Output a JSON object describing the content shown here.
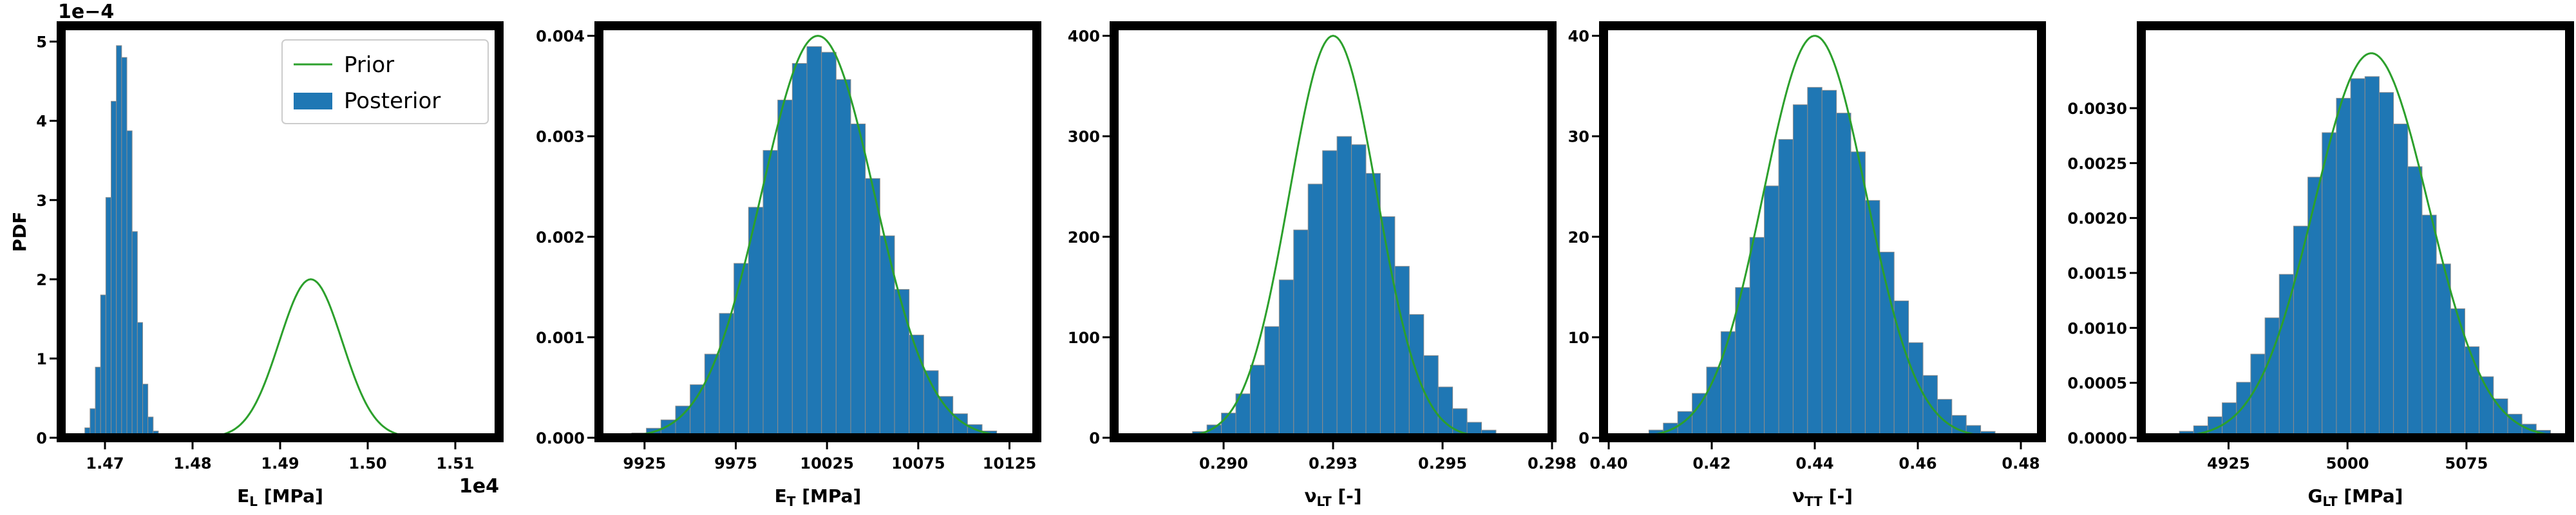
{
  "chart_data": [
    {
      "type": "histogram",
      "xlabel": "E_L [MPa]",
      "ylabel": "PDF",
      "x_offset_text": "1e4",
      "y_offset_text": "1e−4",
      "xlim": [
        1.465,
        1.515
      ],
      "ylim": [
        0,
        5.2
      ],
      "xticks": [
        1.47,
        1.48,
        1.49,
        1.5,
        1.51
      ],
      "xtick_labels": [
        "1.47",
        "1.48",
        "1.49",
        "1.50",
        "1.51"
      ],
      "yticks": [
        0,
        1,
        2,
        3,
        4,
        5
      ],
      "ytick_labels": [
        "0",
        "1",
        "2",
        "3",
        "4",
        "5"
      ],
      "legend": {
        "position": "top-right",
        "entries": [
          "Prior",
          "Posterior"
        ]
      },
      "prior": {
        "mean": 1.4935,
        "std": 0.0036,
        "peak": 2.0
      },
      "posterior": {
        "mean": 1.4718,
        "std": 0.0014,
        "peak": 5.0,
        "bin_start": 1.4665,
        "bin_width": 0.0006,
        "bins": 18
      }
    },
    {
      "type": "histogram",
      "xlabel": "E_T [MPa]",
      "xlim": [
        9900,
        10140
      ],
      "ylim": [
        0,
        0.0041
      ],
      "xticks": [
        9925,
        9975,
        10025,
        10075,
        10125
      ],
      "xtick_labels": [
        "9925",
        "9975",
        "10025",
        "10075",
        "10125"
      ],
      "yticks": [
        0,
        0.001,
        0.002,
        0.003,
        0.004
      ],
      "ytick_labels": [
        "0.000",
        "0.001",
        "0.002",
        "0.003",
        "0.004"
      ],
      "prior": {
        "mean": 10020,
        "std": 31,
        "peak": 0.004
      },
      "posterior": {
        "mean": 10020,
        "std": 33,
        "peak": 0.0039,
        "bin_start": 9910,
        "bin_width": 8,
        "bins": 28
      }
    },
    {
      "type": "histogram",
      "xlabel": "ν_LT [-]",
      "xlim": [
        0.2875,
        0.2975
      ],
      "ylim": [
        0,
        410
      ],
      "xticks": [
        0.29,
        0.2925,
        0.295,
        0.2975
      ],
      "xtick_labels": [
        "0.290",
        "0.293",
        "0.295",
        "0.298"
      ],
      "yticks": [
        0,
        100,
        200,
        300,
        400
      ],
      "ytick_labels": [
        "0",
        "100",
        "200",
        "300",
        "400"
      ],
      "prior": {
        "mean": 0.2925,
        "std": 0.001,
        "peak": 400
      },
      "posterior": {
        "mean": 0.2928,
        "std": 0.0012,
        "peak": 300,
        "bin_start": 0.2883,
        "bin_width": 0.00033,
        "bins": 27
      }
    },
    {
      "type": "histogram",
      "xlabel": "ν_TT [-]",
      "xlim": [
        0.399,
        0.484
      ],
      "ylim": [
        0,
        41
      ],
      "xticks": [
        0.4,
        0.42,
        0.44,
        0.46,
        0.48
      ],
      "xtick_labels": [
        "0.40",
        "0.42",
        "0.44",
        "0.46",
        "0.48"
      ],
      "yticks": [
        0,
        10,
        20,
        30,
        40
      ],
      "ytick_labels": [
        "0",
        "10",
        "20",
        "30",
        "40"
      ],
      "prior": {
        "mean": 0.44,
        "std": 0.01,
        "peak": 40
      },
      "posterior": {
        "mean": 0.441,
        "std": 0.0115,
        "peak": 35,
        "bin_start": 0.405,
        "bin_width": 0.0028,
        "bins": 27
      }
    },
    {
      "type": "histogram",
      "xlabel": "G_LT [MPa]",
      "xlim": [
        4870,
        5140
      ],
      "ylim": [
        0,
        0.00375
      ],
      "xticks": [
        4925,
        5000,
        5075
      ],
      "xtick_labels": [
        "4925",
        "5000",
        "5075"
      ],
      "yticks": [
        0,
        0.0005,
        0.001,
        0.0015,
        0.002,
        0.0025,
        0.003
      ],
      "ytick_labels": [
        "0.0000",
        "0.0005",
        "0.0010",
        "0.0015",
        "0.0020",
        "0.0025",
        "0.0030"
      ],
      "prior": {
        "mean": 5015,
        "std": 36,
        "peak": 0.0035
      },
      "posterior": {
        "mean": 5012,
        "std": 40,
        "peak": 0.0033,
        "bin_start": 4885,
        "bin_width": 9,
        "bins": 28
      }
    }
  ],
  "colors": {
    "prior": "#2ca02c",
    "posterior": "#1f77b4",
    "bar_edge": "#8c8c8c"
  }
}
